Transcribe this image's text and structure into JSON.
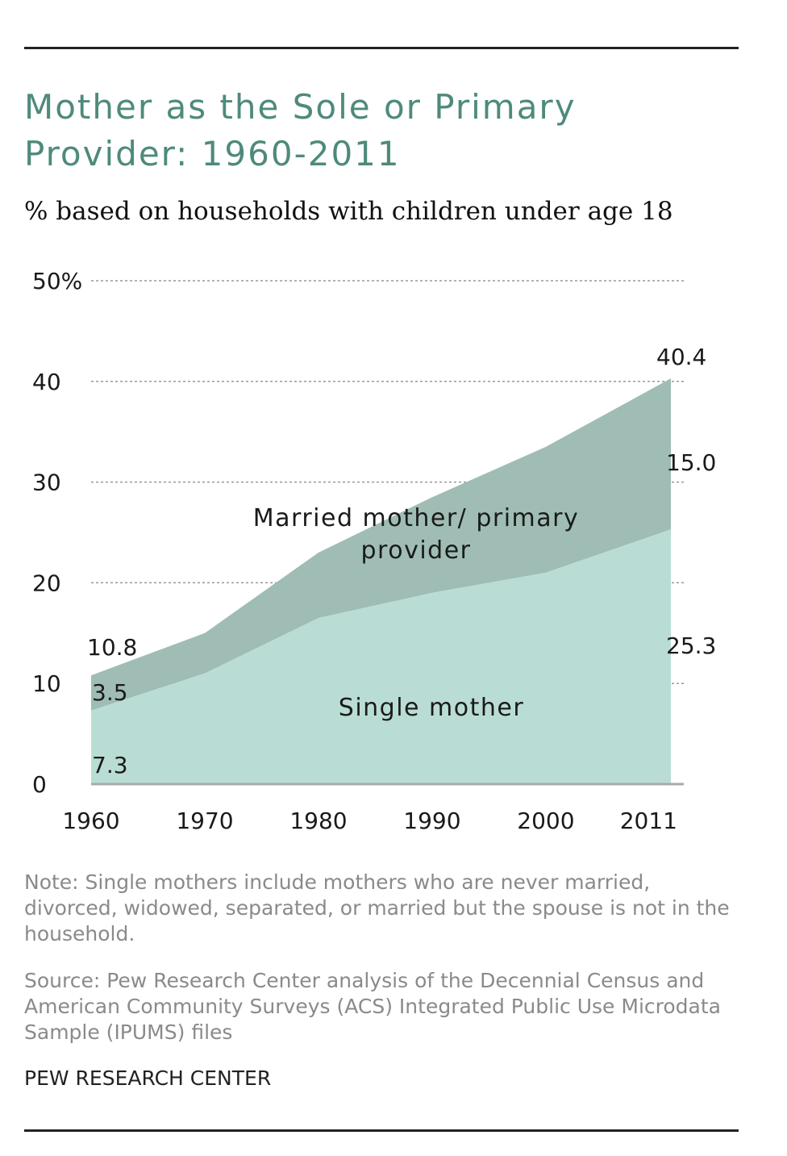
{
  "title": "Mother as the Sole or Primary Provider: 1960-2011",
  "subtitle": "% based on households with children under age 18",
  "note": "Note: Single mothers include mothers who are never married, divorced, widowed, separated, or married but the spouse is not in the household.",
  "source": "Source: Pew Research Center analysis of the Decennial Census and American Community Surveys (ACS) Integrated Public Use Microdata Sample (IPUMS) files",
  "credit": "PEW RESEARCH CENTER",
  "colors": {
    "title": "#4e8a7c",
    "married_area": "#9fbdb4",
    "single_area": "#b9ddd4",
    "gridline": "#999999",
    "axis": "#aaaaaa"
  },
  "chart_data": {
    "type": "area",
    "stacked": true,
    "x": [
      1960,
      1970,
      1980,
      1990,
      2000,
      2011
    ],
    "x_tick_labels": [
      "1960",
      "1970",
      "1980",
      "1990",
      "2000",
      "2011"
    ],
    "y_ticks": [
      0,
      10,
      20,
      30,
      40,
      50
    ],
    "y_tick_labels": [
      "0",
      "10",
      "20",
      "30",
      "40",
      "50%"
    ],
    "ylim": [
      0,
      50
    ],
    "grid": true,
    "series": [
      {
        "name": "Single mother",
        "values": [
          7.3,
          11.0,
          16.5,
          19.0,
          21.0,
          25.3
        ]
      },
      {
        "name": "Married mother/ primary provider",
        "values": [
          3.5,
          4.0,
          6.5,
          9.5,
          12.5,
          15.0
        ]
      }
    ],
    "series_labels": {
      "single": "Single mother",
      "married_line1": "Married mother/ primary",
      "married_line2": "provider"
    },
    "data_labels": {
      "total_1960": "10.8",
      "married_1960": "3.5",
      "single_1960": "7.3",
      "total_2011": "40.4",
      "married_2011": "15.0",
      "single_2011": "25.3"
    }
  }
}
